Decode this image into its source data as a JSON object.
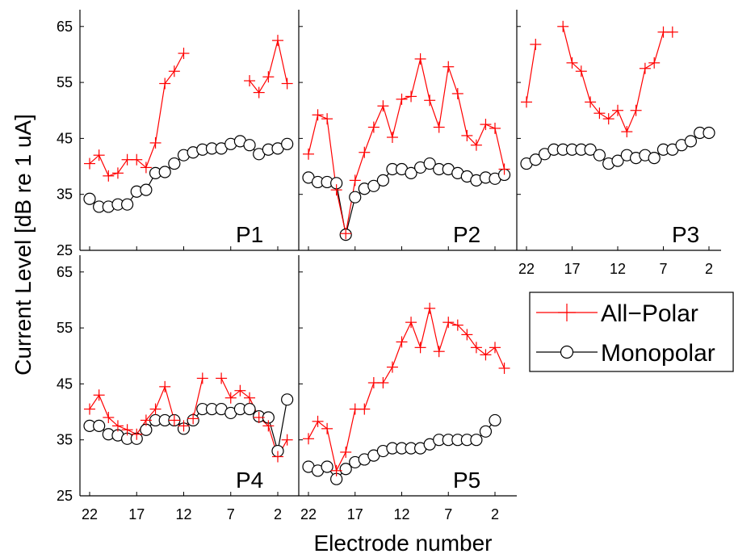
{
  "figure": {
    "ylabel": "Current Level [dB re 1 uA]",
    "xlabel": "Electrode number"
  },
  "legend": {
    "placement": "right, below P3 panel",
    "items": [
      {
        "label": "All−Polar",
        "marker": "plus",
        "color": "#ff0000"
      },
      {
        "label": "Monopolar",
        "marker": "circle",
        "color": "#000000"
      }
    ]
  },
  "chart_data": {
    "type": "line",
    "xlim": [
      22,
      2
    ],
    "ylim": [
      25,
      68
    ],
    "xticks": [
      "22",
      "17",
      "12",
      "7",
      "2"
    ],
    "yticks": [
      "25",
      "35",
      "45",
      "55",
      "65"
    ],
    "series_colors": {
      "all_polar": "#ff0000",
      "monopolar": "#000000"
    },
    "panels": [
      {
        "name": "P1",
        "x_tick_labels_shown": false,
        "y_tick_labels_shown": true,
        "all_polar": [
          [
            22,
            40.5
          ],
          [
            21,
            42.0
          ],
          [
            20,
            38.3
          ],
          [
            19,
            38.8
          ],
          [
            18,
            41.2
          ],
          [
            17,
            41.2
          ],
          [
            16,
            39.8
          ],
          [
            15,
            44.2
          ],
          [
            14,
            54.8
          ],
          [
            13,
            57.0
          ],
          [
            12,
            60.2
          ],
          [
            null,
            null
          ],
          [
            5,
            55.3
          ],
          [
            4,
            53.2
          ],
          [
            3,
            56.0
          ],
          [
            2,
            62.5
          ],
          [
            1,
            54.8
          ]
        ],
        "monopolar": [
          [
            22,
            34.2
          ],
          [
            21,
            32.8
          ],
          [
            20,
            32.8
          ],
          [
            19,
            33.2
          ],
          [
            18,
            33.2
          ],
          [
            17,
            35.5
          ],
          [
            16,
            35.8
          ],
          [
            15,
            38.8
          ],
          [
            14,
            39.0
          ],
          [
            13,
            40.5
          ],
          [
            12,
            42.0
          ],
          [
            11,
            42.5
          ],
          [
            10,
            43.0
          ],
          [
            9,
            43.2
          ],
          [
            8,
            43.2
          ],
          [
            7,
            44.0
          ],
          [
            6,
            44.5
          ],
          [
            5,
            43.8
          ],
          [
            4,
            42.2
          ],
          [
            3,
            43.0
          ],
          [
            2,
            43.2
          ],
          [
            1,
            44.0
          ]
        ]
      },
      {
        "name": "P2",
        "x_tick_labels_shown": false,
        "y_tick_labels_shown": false,
        "all_polar": [
          [
            22,
            42.2
          ],
          [
            21,
            49.2
          ],
          [
            20,
            48.5
          ],
          [
            19,
            35.8
          ],
          [
            18,
            28.0
          ],
          [
            17,
            37.5
          ],
          [
            16,
            42.5
          ],
          [
            15,
            47.0
          ],
          [
            14,
            50.8
          ],
          [
            13,
            45.2
          ],
          [
            12,
            52.0
          ],
          [
            11,
            52.5
          ],
          [
            10,
            59.2
          ],
          [
            9,
            51.8
          ],
          [
            8,
            47.0
          ],
          [
            7,
            57.8
          ],
          [
            6,
            53.0
          ],
          [
            5,
            45.5
          ],
          [
            4,
            43.8
          ],
          [
            3,
            47.5
          ],
          [
            2,
            46.8
          ],
          [
            1,
            39.5
          ]
        ],
        "monopolar": [
          [
            22,
            38.0
          ],
          [
            21,
            37.2
          ],
          [
            20,
            37.2
          ],
          [
            19,
            37.0
          ],
          [
            18,
            27.8
          ],
          [
            17,
            34.5
          ],
          [
            16,
            36.0
          ],
          [
            15,
            36.5
          ],
          [
            14,
            37.5
          ],
          [
            13,
            39.5
          ],
          [
            12,
            39.5
          ],
          [
            11,
            38.8
          ],
          [
            10,
            39.8
          ],
          [
            9,
            40.5
          ],
          [
            8,
            39.5
          ],
          [
            7,
            39.5
          ],
          [
            6,
            38.8
          ],
          [
            5,
            38.2
          ],
          [
            4,
            37.5
          ],
          [
            3,
            38.0
          ],
          [
            2,
            37.8
          ],
          [
            1,
            38.5
          ]
        ]
      },
      {
        "name": "P3",
        "x_tick_labels_shown": true,
        "y_tick_labels_shown": false,
        "all_polar": [
          [
            22,
            51.5
          ],
          [
            21,
            61.8
          ],
          [
            null,
            null
          ],
          [
            18,
            65.0
          ],
          [
            17,
            58.5
          ],
          [
            16,
            57.0
          ],
          [
            15,
            51.5
          ],
          [
            14,
            49.5
          ],
          [
            13,
            48.5
          ],
          [
            12,
            50.0
          ],
          [
            11,
            46.2
          ],
          [
            10,
            50.0
          ],
          [
            9,
            57.5
          ],
          [
            8,
            58.5
          ],
          [
            7,
            64.0
          ],
          [
            6,
            64.0
          ]
        ],
        "monopolar": [
          [
            22,
            40.5
          ],
          [
            21,
            41.2
          ],
          [
            20,
            42.2
          ],
          [
            19,
            43.0
          ],
          [
            18,
            43.0
          ],
          [
            17,
            43.0
          ],
          [
            16,
            43.0
          ],
          [
            15,
            43.0
          ],
          [
            14,
            42.0
          ],
          [
            13,
            40.5
          ],
          [
            12,
            41.0
          ],
          [
            11,
            42.0
          ],
          [
            10,
            41.5
          ],
          [
            9,
            42.0
          ],
          [
            8,
            41.5
          ],
          [
            7,
            43.0
          ],
          [
            6,
            43.0
          ],
          [
            5,
            43.8
          ],
          [
            4,
            44.5
          ],
          [
            3,
            46.0
          ],
          [
            2,
            46.0
          ]
        ]
      },
      {
        "name": "P4",
        "x_tick_labels_shown": true,
        "y_tick_labels_shown": true,
        "all_polar": [
          [
            22,
            40.5
          ],
          [
            21,
            43.0
          ],
          [
            20,
            39.0
          ],
          [
            19,
            37.5
          ],
          [
            18,
            36.8
          ],
          [
            17,
            36.0
          ],
          [
            16,
            38.5
          ],
          [
            15,
            40.5
          ],
          [
            14,
            44.5
          ],
          [
            13,
            38.5
          ],
          [
            12,
            37.5
          ],
          [
            11,
            38.8
          ],
          [
            10,
            46.0
          ],
          [
            null,
            null
          ],
          [
            8,
            46.0
          ],
          [
            7,
            42.5
          ],
          [
            6,
            43.8
          ],
          [
            5,
            42.5
          ],
          [
            4,
            39.0
          ],
          [
            3,
            37.5
          ],
          [
            2,
            32.0
          ],
          [
            1,
            35.0
          ]
        ],
        "monopolar": [
          [
            22,
            37.5
          ],
          [
            21,
            37.5
          ],
          [
            20,
            36.0
          ],
          [
            19,
            35.8
          ],
          [
            18,
            35.2
          ],
          [
            17,
            35.2
          ],
          [
            16,
            36.8
          ],
          [
            15,
            38.5
          ],
          [
            14,
            38.5
          ],
          [
            13,
            38.5
          ],
          [
            12,
            37.0
          ],
          [
            11,
            38.5
          ],
          [
            10,
            40.5
          ],
          [
            9,
            40.5
          ],
          [
            8,
            40.5
          ],
          [
            7,
            39.8
          ],
          [
            6,
            40.5
          ],
          [
            5,
            40.5
          ],
          [
            4,
            39.2
          ],
          [
            3,
            39.0
          ],
          [
            2,
            33.0
          ],
          [
            1,
            42.2
          ]
        ]
      },
      {
        "name": "P5",
        "x_tick_labels_shown": true,
        "y_tick_labels_shown": false,
        "all_polar": [
          [
            22,
            35.2
          ],
          [
            21,
            38.3
          ],
          [
            20,
            37.0
          ],
          [
            19,
            29.5
          ],
          [
            18,
            32.8
          ],
          [
            17,
            40.5
          ],
          [
            16,
            40.5
          ],
          [
            15,
            45.2
          ],
          [
            14,
            45.2
          ],
          [
            13,
            48.0
          ],
          [
            12,
            52.5
          ],
          [
            11,
            56.0
          ],
          [
            10,
            51.5
          ],
          [
            9,
            58.5
          ],
          [
            8,
            50.8
          ],
          [
            7,
            56.0
          ],
          [
            6,
            55.5
          ],
          [
            5,
            53.8
          ],
          [
            4,
            51.5
          ],
          [
            3,
            50.2
          ],
          [
            2,
            51.5
          ],
          [
            1,
            47.8
          ]
        ],
        "monopolar": [
          [
            22,
            30.2
          ],
          [
            21,
            29.5
          ],
          [
            20,
            30.2
          ],
          [
            19,
            28.0
          ],
          [
            18,
            29.8
          ],
          [
            17,
            31.0
          ],
          [
            16,
            31.5
          ],
          [
            15,
            32.2
          ],
          [
            14,
            33.0
          ],
          [
            13,
            33.5
          ],
          [
            12,
            33.5
          ],
          [
            11,
            33.5
          ],
          [
            10,
            33.5
          ],
          [
            9,
            34.2
          ],
          [
            8,
            35.0
          ],
          [
            7,
            35.0
          ],
          [
            6,
            35.0
          ],
          [
            5,
            35.0
          ],
          [
            4,
            35.0
          ],
          [
            3,
            36.5
          ],
          [
            2,
            38.5
          ]
        ]
      }
    ]
  }
}
